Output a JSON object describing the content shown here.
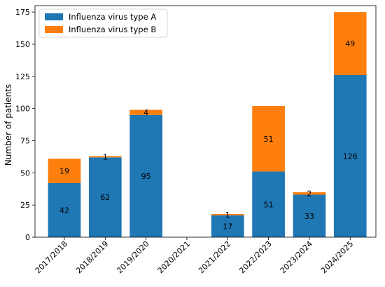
{
  "chart_data": {
    "type": "bar",
    "stacked": true,
    "categories": [
      "2017/2018",
      "2018/2019",
      "2019/2020",
      "2020/2021",
      "2021/2022",
      "2022/2023",
      "2023/2024",
      "2024/2025"
    ],
    "series": [
      {
        "name": "Influenza virus type A",
        "color": "#1f77b4",
        "values": [
          42,
          62,
          95,
          0,
          17,
          51,
          33,
          126
        ]
      },
      {
        "name": "Influenza virus type B",
        "color": "#ff7f0e",
        "values": [
          19,
          1,
          4,
          0,
          1,
          51,
          2,
          49
        ]
      }
    ],
    "data_labels": {
      "series_a": [
        "42",
        "62",
        "95",
        "",
        "17",
        "51",
        "33",
        "126"
      ],
      "series_b": [
        "19",
        "1",
        "4",
        "",
        "1",
        "51",
        "2",
        "49"
      ]
    },
    "ylabel": "Number of patients",
    "ylim": [
      0,
      180
    ],
    "yticks": [
      "0",
      "25",
      "50",
      "75",
      "100",
      "125",
      "150",
      "175"
    ],
    "ytick_values": [
      0,
      25,
      50,
      75,
      100,
      125,
      150,
      175
    ],
    "legend_position": "top-left",
    "grid": false
  }
}
